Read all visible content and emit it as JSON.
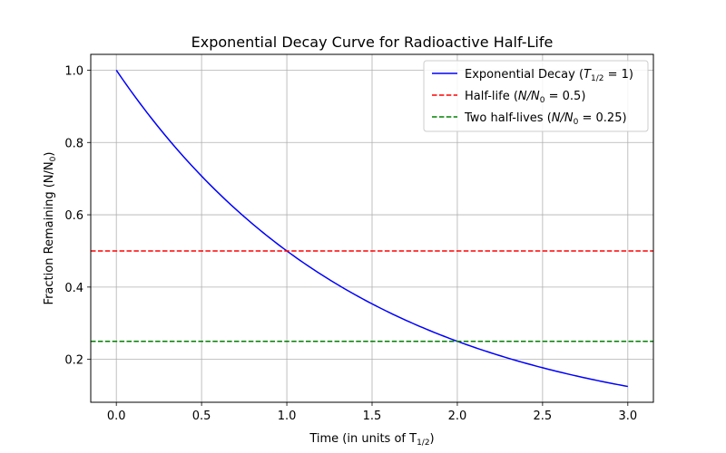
{
  "chart_data": {
    "type": "line",
    "title": "Exponential Decay Curve for Radioactive Half-Life",
    "xlabel": "Time (in units of T",
    "xlabel_sub": "1/2",
    "xlabel_end": ")",
    "ylabel": "Fraction Remaining (N/N",
    "ylabel_sub": "0",
    "ylabel_end": ")",
    "xlim": [
      -0.15,
      3.15
    ],
    "ylim": [
      0.0813,
      1.0438
    ],
    "x_ticks": [
      0.0,
      0.5,
      1.0,
      1.5,
      2.0,
      2.5,
      3.0
    ],
    "x_tick_labels": [
      "0.0",
      "0.5",
      "1.0",
      "1.5",
      "2.0",
      "2.5",
      "3.0"
    ],
    "y_ticks": [
      0.2,
      0.4,
      0.6,
      0.8,
      1.0
    ],
    "y_tick_labels": [
      "0.2",
      "0.4",
      "0.6",
      "0.8",
      "1.0"
    ],
    "grid": true,
    "legend_position": "top-right",
    "series": [
      {
        "name": "Exponential Decay (T1/2 = 1)",
        "kind": "curve",
        "function": "0.5^x",
        "x_range": [
          0,
          3
        ],
        "color": "#0000ff",
        "legend_parts": [
          "Exponential Decay (",
          "T",
          "1/2",
          " = 1)"
        ]
      },
      {
        "name": "Half-life (N/N0 = 0.5)",
        "kind": "hline",
        "y": 0.5,
        "color": "#ff0000",
        "dashed": true,
        "legend_parts": [
          "Half-life (",
          "N/N",
          "0",
          " = 0.5)"
        ]
      },
      {
        "name": "Two half-lives (N/N0 = 0.25)",
        "kind": "hline",
        "y": 0.25,
        "color": "#008000",
        "dashed": true,
        "legend_parts": [
          "Two half-lives (",
          "N/N",
          "0",
          " = 0.25)"
        ]
      }
    ]
  }
}
